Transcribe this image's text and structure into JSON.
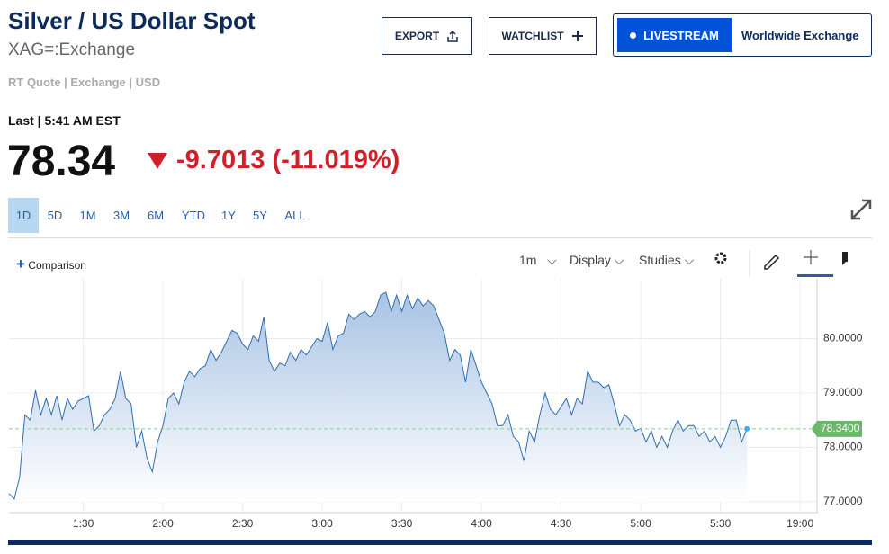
{
  "header": {
    "title": "Silver / US Dollar Spot",
    "symbol": "XAG=:Exchange",
    "quote_info": "RT Quote | Exchange | USD",
    "last_time": "Last | 5:41 AM EST",
    "price": "78.34",
    "change": "-9.7013 (-11.019%)"
  },
  "buttons": {
    "export": "EXPORT",
    "watchlist": "WATCHLIST",
    "livestream": "LIVESTREAM",
    "channel": "Worldwide Exchange"
  },
  "ranges": [
    "1D",
    "5D",
    "1M",
    "3M",
    "6M",
    "YTD",
    "1Y",
    "5Y",
    "ALL"
  ],
  "toolbar": {
    "comparison": "Comparison",
    "interval": "1m",
    "display": "Display",
    "studies": "Studies"
  },
  "chart_data": {
    "type": "area",
    "color": "#2f6eae",
    "grid": true,
    "last_label": "78.3400",
    "xlim": [
      62,
      366.4
    ],
    "xticks": [
      {
        "value": 90,
        "label": "1:30"
      },
      {
        "value": 120,
        "label": "2:00"
      },
      {
        "value": 150,
        "label": "2:30"
      },
      {
        "value": 180,
        "label": "3:00"
      },
      {
        "value": 210,
        "label": "3:30"
      },
      {
        "value": 240,
        "label": "4:00"
      },
      {
        "value": 270,
        "label": "4:30"
      },
      {
        "value": 300,
        "label": "5:00"
      },
      {
        "value": 330,
        "label": "5:30"
      },
      {
        "value": 360,
        "label": "19:00"
      }
    ],
    "ylim": [
      76.8,
      81.1
    ],
    "yticks": [
      {
        "value": 77,
        "label": "77.0000"
      },
      {
        "value": 78,
        "label": "78.0000"
      },
      {
        "value": 79,
        "label": "79.0000"
      },
      {
        "value": 80,
        "label": "80.0000"
      }
    ],
    "x": [
      62,
      64,
      66,
      68,
      70,
      72,
      74,
      76,
      78,
      80,
      82,
      84,
      86,
      88,
      90,
      92,
      94,
      96,
      98,
      100,
      102,
      104,
      106,
      108,
      110,
      112,
      114,
      116,
      118,
      120,
      122,
      124,
      126,
      128,
      130,
      132,
      134,
      136,
      138,
      140,
      142,
      144,
      146,
      148,
      150,
      152,
      154,
      156,
      158,
      160,
      162,
      164,
      166,
      168,
      170,
      172,
      174,
      176,
      178,
      180,
      182,
      184,
      186,
      188,
      190,
      192,
      194,
      196,
      198,
      200,
      202,
      204,
      206,
      208,
      210,
      212,
      214,
      216,
      218,
      220,
      222,
      224,
      226,
      228,
      230,
      232,
      234,
      236,
      238,
      240,
      242,
      244,
      246,
      248,
      250,
      252,
      254,
      256,
      258,
      260,
      262,
      264,
      266,
      268,
      270,
      272,
      274,
      276,
      278,
      280,
      282,
      284,
      286,
      288,
      290,
      292,
      294,
      296,
      298,
      300,
      302,
      304,
      306,
      308,
      310,
      312,
      314,
      316,
      318,
      320,
      322,
      324,
      326,
      328,
      330,
      332,
      334,
      336,
      338,
      340
    ],
    "values": [
      77.15,
      77.05,
      77.45,
      78.6,
      78.5,
      79.05,
      78.6,
      78.9,
      78.6,
      78.95,
      78.5,
      78.9,
      78.7,
      78.85,
      78.9,
      78.95,
      78.3,
      78.4,
      78.6,
      78.7,
      78.9,
      79.4,
      78.9,
      78.8,
      78.0,
      78.3,
      77.8,
      77.55,
      78.1,
      78.4,
      78.9,
      79.0,
      78.8,
      79.2,
      79.4,
      79.3,
      79.45,
      79.5,
      79.8,
      79.6,
      79.75,
      79.95,
      80.15,
      80.1,
      79.9,
      79.8,
      80.05,
      79.95,
      80.4,
      79.6,
      79.4,
      79.55,
      79.5,
      79.75,
      79.6,
      79.8,
      79.7,
      79.85,
      80.0,
      79.95,
      80.3,
      79.8,
      80.05,
      80.1,
      80.45,
      80.35,
      80.45,
      80.5,
      80.4,
      80.5,
      80.8,
      80.85,
      80.5,
      80.8,
      80.5,
      80.8,
      80.55,
      80.75,
      80.6,
      80.7,
      80.6,
      80.35,
      80.1,
      79.6,
      79.8,
      79.7,
      79.2,
      79.8,
      79.5,
      79.2,
      79.0,
      78.8,
      78.4,
      78.4,
      78.6,
      78.2,
      78.1,
      77.75,
      78.3,
      78.1,
      78.6,
      79.0,
      78.7,
      78.6,
      78.75,
      78.9,
      78.6,
      78.9,
      78.8,
      79.4,
      79.2,
      79.2,
      79.1,
      79.15,
      78.8,
      78.4,
      78.6,
      78.5,
      78.3,
      78.35,
      78.1,
      78.3,
      78.0,
      78.2,
      78.0,
      78.3,
      78.5,
      78.3,
      78.4,
      78.4,
      78.2,
      78.3,
      78.1,
      78.2,
      78.0,
      78.2,
      78.5,
      78.5,
      78.1,
      78.34
    ]
  }
}
